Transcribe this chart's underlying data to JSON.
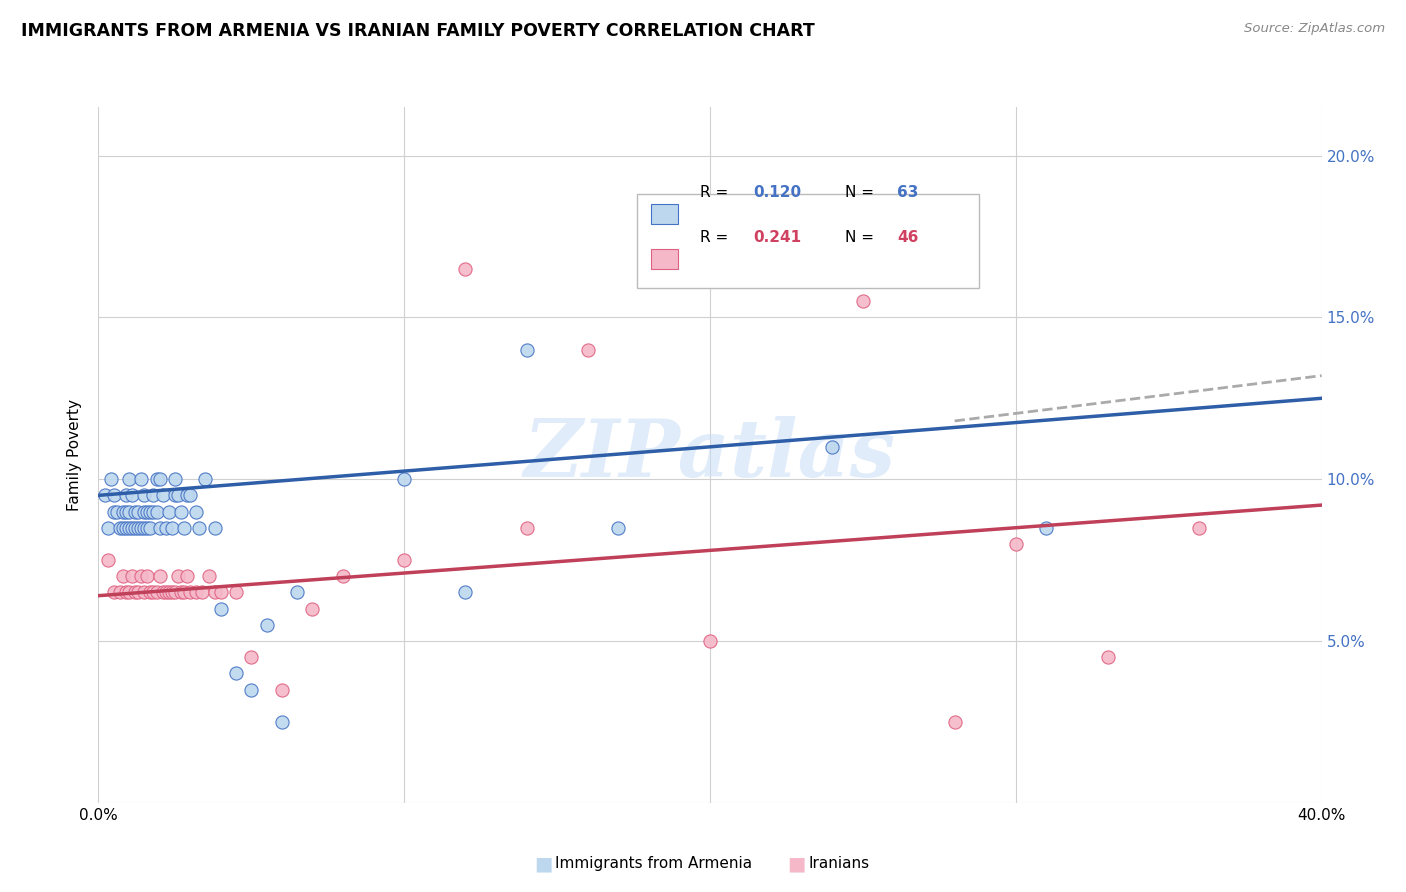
{
  "title": "IMMIGRANTS FROM ARMENIA VS IRANIAN FAMILY POVERTY CORRELATION CHART",
  "source": "Source: ZipAtlas.com",
  "ylabel": "Family Poverty",
  "xlim": [
    0.0,
    0.4
  ],
  "ylim": [
    0.0,
    0.215
  ],
  "xtick_positions": [
    0.0,
    0.1,
    0.2,
    0.3,
    0.4
  ],
  "xtick_labels": [
    "0.0%",
    "",
    "",
    "",
    "40.0%"
  ],
  "ytick_positions": [
    0.0,
    0.05,
    0.1,
    0.15,
    0.2
  ],
  "ytick_labels_right": [
    "",
    "5.0%",
    "10.0%",
    "15.0%",
    "20.0%"
  ],
  "color_blue_fill": "#BDD7EE",
  "color_blue_edge": "#4472C4",
  "color_pink_fill": "#F4B8C8",
  "color_pink_edge": "#E06080",
  "color_blue_line": "#2E5EA8",
  "color_pink_line": "#C0405A",
  "color_blue_text": "#4472C4",
  "color_pink_text": "#D04060",
  "watermark": "ZIPatlas",
  "trend_blue_x0": 0.0,
  "trend_blue_x1": 0.4,
  "trend_blue_y0": 0.095,
  "trend_blue_y1": 0.125,
  "trend_pink_x0": 0.0,
  "trend_pink_x1": 0.4,
  "trend_pink_y0": 0.064,
  "trend_pink_y1": 0.092,
  "trend_gray_x0": 0.28,
  "trend_gray_x1": 0.4,
  "trend_gray_y0": 0.118,
  "trend_gray_y1": 0.132,
  "scatter_blue_x": [
    0.002,
    0.003,
    0.004,
    0.005,
    0.005,
    0.006,
    0.007,
    0.008,
    0.008,
    0.009,
    0.009,
    0.009,
    0.01,
    0.01,
    0.01,
    0.011,
    0.011,
    0.012,
    0.012,
    0.013,
    0.013,
    0.014,
    0.014,
    0.015,
    0.015,
    0.015,
    0.016,
    0.016,
    0.017,
    0.017,
    0.018,
    0.018,
    0.019,
    0.019,
    0.02,
    0.02,
    0.021,
    0.022,
    0.023,
    0.024,
    0.025,
    0.025,
    0.026,
    0.027,
    0.028,
    0.029,
    0.03,
    0.032,
    0.033,
    0.035,
    0.038,
    0.04,
    0.045,
    0.05,
    0.055,
    0.06,
    0.065,
    0.1,
    0.12,
    0.14,
    0.17,
    0.24,
    0.31
  ],
  "scatter_blue_y": [
    0.095,
    0.085,
    0.1,
    0.095,
    0.09,
    0.09,
    0.085,
    0.085,
    0.09,
    0.085,
    0.09,
    0.095,
    0.085,
    0.09,
    0.1,
    0.085,
    0.095,
    0.085,
    0.09,
    0.085,
    0.09,
    0.085,
    0.1,
    0.085,
    0.09,
    0.095,
    0.085,
    0.09,
    0.085,
    0.09,
    0.09,
    0.095,
    0.1,
    0.09,
    0.085,
    0.1,
    0.095,
    0.085,
    0.09,
    0.085,
    0.095,
    0.1,
    0.095,
    0.09,
    0.085,
    0.095,
    0.095,
    0.09,
    0.085,
    0.1,
    0.085,
    0.06,
    0.04,
    0.035,
    0.055,
    0.025,
    0.065,
    0.1,
    0.065,
    0.14,
    0.085,
    0.11,
    0.085
  ],
  "scatter_pink_x": [
    0.003,
    0.005,
    0.007,
    0.008,
    0.009,
    0.01,
    0.011,
    0.012,
    0.013,
    0.014,
    0.015,
    0.016,
    0.017,
    0.018,
    0.019,
    0.02,
    0.021,
    0.022,
    0.023,
    0.024,
    0.025,
    0.026,
    0.027,
    0.028,
    0.029,
    0.03,
    0.032,
    0.034,
    0.036,
    0.038,
    0.04,
    0.045,
    0.05,
    0.06,
    0.07,
    0.08,
    0.1,
    0.12,
    0.14,
    0.16,
    0.2,
    0.25,
    0.28,
    0.3,
    0.33,
    0.36
  ],
  "scatter_pink_y": [
    0.075,
    0.065,
    0.065,
    0.07,
    0.065,
    0.065,
    0.07,
    0.065,
    0.065,
    0.07,
    0.065,
    0.07,
    0.065,
    0.065,
    0.065,
    0.07,
    0.065,
    0.065,
    0.065,
    0.065,
    0.065,
    0.07,
    0.065,
    0.065,
    0.07,
    0.065,
    0.065,
    0.065,
    0.07,
    0.065,
    0.065,
    0.065,
    0.045,
    0.035,
    0.06,
    0.07,
    0.075,
    0.165,
    0.085,
    0.14,
    0.05,
    0.155,
    0.025,
    0.08,
    0.045,
    0.085
  ]
}
